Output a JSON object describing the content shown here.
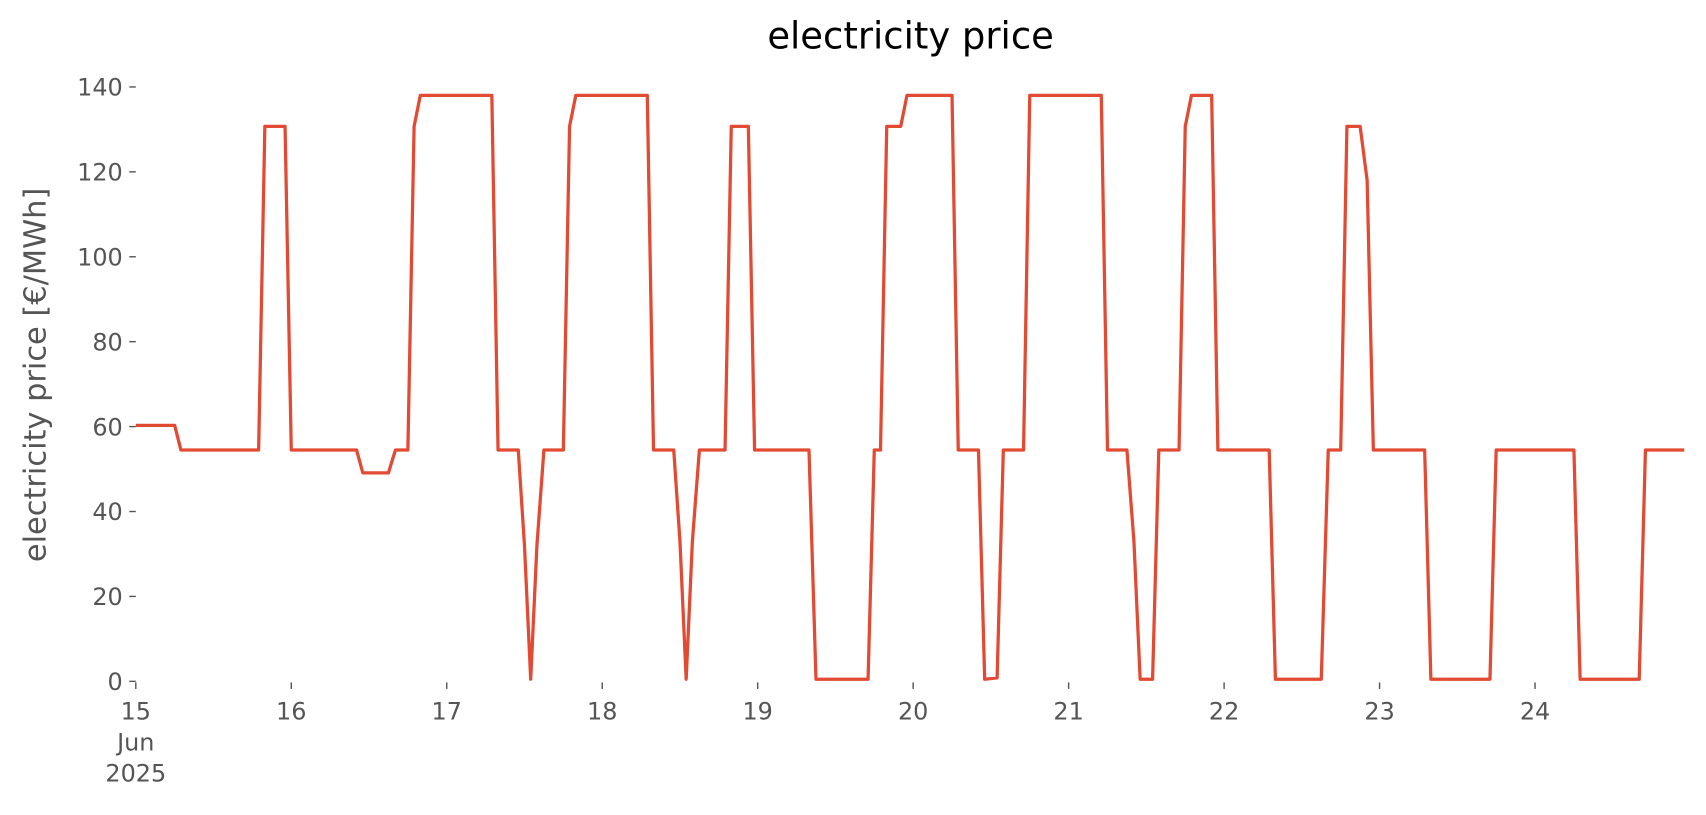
{
  "chart_data": {
    "type": "line",
    "title": "electricity price",
    "y_label": "electricity price [€/MWh]",
    "x": [
      15.0,
      15.25,
      15.29,
      15.79,
      15.83,
      15.96,
      16.0,
      16.42,
      16.46,
      16.625,
      16.67,
      16.75,
      16.79,
      16.83,
      17.29,
      17.33,
      17.46,
      17.5,
      17.54,
      17.58,
      17.625,
      17.75,
      17.79,
      17.83,
      18.29,
      18.33,
      18.46,
      18.5,
      18.54,
      18.58,
      18.625,
      18.79,
      18.83,
      18.94,
      18.98,
      19.33,
      19.375,
      19.71,
      19.75,
      19.79,
      19.83,
      19.92,
      19.96,
      20.25,
      20.29,
      20.42,
      20.46,
      20.54,
      20.58,
      20.71,
      20.75,
      21.21,
      21.25,
      21.375,
      21.42,
      21.46,
      21.54,
      21.58,
      21.71,
      21.75,
      21.79,
      21.92,
      21.96,
      22.29,
      22.33,
      22.625,
      22.67,
      22.75,
      22.79,
      22.875,
      22.92,
      22.96,
      23.29,
      23.33,
      23.71,
      23.75,
      24.25,
      24.29,
      24.67,
      24.71,
      24.96
    ],
    "series": [
      {
        "name": "electricity price",
        "color": "#e24a33",
        "values": [
          60.3,
          60.3,
          54.5,
          54.5,
          130.7,
          130.7,
          54.5,
          54.5,
          49.1,
          49.1,
          54.5,
          54.5,
          130.7,
          138,
          138,
          54.5,
          54.5,
          32,
          0.5,
          32,
          54.5,
          54.5,
          130.7,
          138,
          138,
          54.5,
          54.5,
          33,
          0.5,
          33,
          54.5,
          54.5,
          130.7,
          130.7,
          54.5,
          54.5,
          0.5,
          0.5,
          54.5,
          54.5,
          130.7,
          130.7,
          138,
          138,
          54.5,
          54.5,
          0.5,
          0.8,
          54.5,
          54.5,
          138,
          138,
          54.5,
          54.5,
          33,
          0.5,
          0.5,
          54.5,
          54.5,
          130.7,
          138,
          138,
          54.5,
          54.5,
          0.5,
          0.5,
          54.5,
          54.5,
          130.7,
          130.7,
          118,
          54.5,
          54.5,
          0.5,
          0.5,
          54.5,
          54.5,
          0.5,
          0.5,
          54.5,
          54.5
        ]
      }
    ],
    "xlim": [
      15,
      24.96
    ],
    "xticks": [
      {
        "value": 15,
        "label": "15\nJun\n2025"
      },
      16,
      17,
      18,
      19,
      20,
      21,
      22,
      23,
      24
    ],
    "ylim": [
      0,
      140
    ],
    "yticks": [
      0,
      20,
      40,
      60,
      80,
      100,
      120,
      140
    ],
    "grid": false
  }
}
